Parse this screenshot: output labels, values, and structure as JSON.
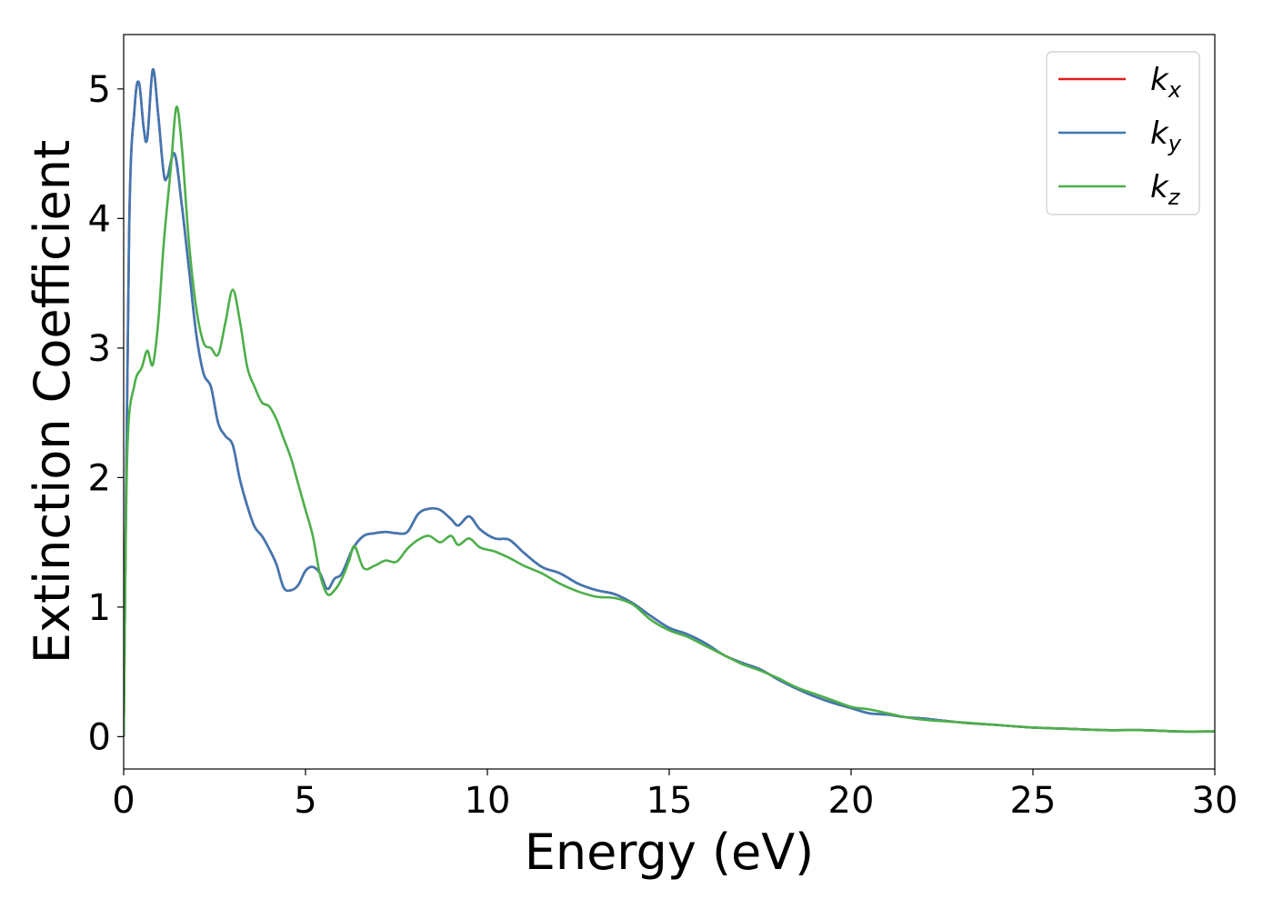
{
  "chart_data": {
    "type": "line",
    "title": "",
    "xlabel": "Energy (eV)",
    "ylabel": "Extinction Coefficient",
    "xlim": [
      0,
      30
    ],
    "ylim": [
      -0.25,
      5.42
    ],
    "xticks": [
      0,
      5,
      10,
      15,
      20,
      25,
      30
    ],
    "yticks": [
      0,
      1,
      2,
      3,
      4,
      5
    ],
    "legend_position": "top-right",
    "grid": false,
    "series": [
      {
        "name": "k",
        "subscript": "x",
        "color": "#e41a1c",
        "x": [
          0,
          0.15,
          0.3,
          0.42,
          0.55,
          0.65,
          0.8,
          0.95,
          1.1,
          1.2,
          1.4,
          1.6,
          1.8,
          2.0,
          2.2,
          2.4,
          2.6,
          2.8,
          3.0,
          3.2,
          3.4,
          3.6,
          3.8,
          4.0,
          4.2,
          4.4,
          4.6,
          4.8,
          5.0,
          5.2,
          5.4,
          5.6,
          5.8,
          6.0,
          6.3,
          6.6,
          6.9,
          7.2,
          7.5,
          7.8,
          8.1,
          8.4,
          8.7,
          9.0,
          9.2,
          9.5,
          9.8,
          10.2,
          10.6,
          11.0,
          11.5,
          12.0,
          12.5,
          13.0,
          13.5,
          14.0,
          14.5,
          15.0,
          15.5,
          16.0,
          16.5,
          17.0,
          17.5,
          18.0,
          18.5,
          19.0,
          19.5,
          20.0,
          20.5,
          21.0,
          21.5,
          22.0,
          23.0,
          24.0,
          25.0,
          26.0,
          27.0,
          28.0,
          29.0,
          30.0
        ],
        "values": [
          0,
          3.9,
          4.85,
          5.05,
          4.7,
          4.62,
          5.15,
          4.8,
          4.35,
          4.32,
          4.5,
          4.1,
          3.6,
          3.1,
          2.8,
          2.7,
          2.42,
          2.32,
          2.25,
          1.98,
          1.78,
          1.62,
          1.55,
          1.45,
          1.33,
          1.15,
          1.13,
          1.17,
          1.28,
          1.31,
          1.26,
          1.14,
          1.22,
          1.26,
          1.45,
          1.55,
          1.57,
          1.58,
          1.57,
          1.58,
          1.72,
          1.76,
          1.75,
          1.68,
          1.63,
          1.7,
          1.6,
          1.53,
          1.52,
          1.42,
          1.31,
          1.26,
          1.18,
          1.13,
          1.1,
          1.03,
          0.93,
          0.84,
          0.79,
          0.72,
          0.63,
          0.57,
          0.52,
          0.44,
          0.37,
          0.31,
          0.26,
          0.22,
          0.18,
          0.17,
          0.15,
          0.14,
          0.11,
          0.09,
          0.07,
          0.06,
          0.05,
          0.05,
          0.04,
          0.04
        ]
      },
      {
        "name": "k",
        "subscript": "y",
        "color": "#3e78b3",
        "x": [
          0,
          0.15,
          0.3,
          0.42,
          0.55,
          0.65,
          0.8,
          0.95,
          1.1,
          1.2,
          1.4,
          1.6,
          1.8,
          2.0,
          2.2,
          2.4,
          2.6,
          2.8,
          3.0,
          3.2,
          3.4,
          3.6,
          3.8,
          4.0,
          4.2,
          4.4,
          4.6,
          4.8,
          5.0,
          5.2,
          5.4,
          5.6,
          5.8,
          6.0,
          6.3,
          6.6,
          6.9,
          7.2,
          7.5,
          7.8,
          8.1,
          8.4,
          8.7,
          9.0,
          9.2,
          9.5,
          9.8,
          10.2,
          10.6,
          11.0,
          11.5,
          12.0,
          12.5,
          13.0,
          13.5,
          14.0,
          14.5,
          15.0,
          15.5,
          16.0,
          16.5,
          17.0,
          17.5,
          18.0,
          18.5,
          19.0,
          19.5,
          20.0,
          20.5,
          21.0,
          21.5,
          22.0,
          23.0,
          24.0,
          25.0,
          26.0,
          27.0,
          28.0,
          29.0,
          30.0
        ],
        "values": [
          0,
          3.9,
          4.85,
          5.05,
          4.7,
          4.62,
          5.15,
          4.8,
          4.35,
          4.32,
          4.5,
          4.1,
          3.6,
          3.1,
          2.8,
          2.7,
          2.42,
          2.32,
          2.25,
          1.98,
          1.78,
          1.62,
          1.55,
          1.45,
          1.33,
          1.15,
          1.13,
          1.17,
          1.28,
          1.31,
          1.26,
          1.14,
          1.22,
          1.26,
          1.45,
          1.55,
          1.57,
          1.58,
          1.57,
          1.58,
          1.72,
          1.76,
          1.75,
          1.68,
          1.63,
          1.7,
          1.6,
          1.53,
          1.52,
          1.42,
          1.31,
          1.26,
          1.18,
          1.13,
          1.1,
          1.03,
          0.93,
          0.84,
          0.79,
          0.72,
          0.63,
          0.57,
          0.52,
          0.44,
          0.37,
          0.31,
          0.26,
          0.22,
          0.18,
          0.17,
          0.15,
          0.14,
          0.11,
          0.09,
          0.07,
          0.06,
          0.05,
          0.05,
          0.04,
          0.04
        ]
      },
      {
        "name": "k",
        "subscript": "z",
        "color": "#4daf4a",
        "x": [
          0,
          0.1,
          0.3,
          0.5,
          0.65,
          0.8,
          0.95,
          1.1,
          1.3,
          1.45,
          1.6,
          1.8,
          2.0,
          2.2,
          2.4,
          2.6,
          2.8,
          3.0,
          3.2,
          3.4,
          3.6,
          3.8,
          4.0,
          4.2,
          4.4,
          4.6,
          4.8,
          5.0,
          5.2,
          5.4,
          5.6,
          5.8,
          6.0,
          6.2,
          6.35,
          6.6,
          6.9,
          7.2,
          7.5,
          7.8,
          8.1,
          8.4,
          8.7,
          9.0,
          9.2,
          9.5,
          9.8,
          10.2,
          10.6,
          11.0,
          11.5,
          12.0,
          12.5,
          13.0,
          13.5,
          14.0,
          14.5,
          15.0,
          15.5,
          16.0,
          16.5,
          17.0,
          17.5,
          18.0,
          18.5,
          19.0,
          19.5,
          20.0,
          20.5,
          21.0,
          21.5,
          22.0,
          23.0,
          24.0,
          25.0,
          26.0,
          27.0,
          28.0,
          29.0,
          30.0
        ],
        "values": [
          0,
          2.2,
          2.72,
          2.85,
          2.98,
          2.87,
          3.2,
          3.8,
          4.4,
          4.86,
          4.55,
          3.8,
          3.3,
          3.04,
          3.0,
          2.95,
          3.2,
          3.45,
          3.2,
          2.85,
          2.7,
          2.58,
          2.55,
          2.45,
          2.3,
          2.15,
          1.95,
          1.75,
          1.55,
          1.25,
          1.1,
          1.13,
          1.22,
          1.36,
          1.47,
          1.3,
          1.32,
          1.36,
          1.35,
          1.45,
          1.52,
          1.55,
          1.5,
          1.55,
          1.48,
          1.53,
          1.46,
          1.43,
          1.38,
          1.32,
          1.26,
          1.18,
          1.12,
          1.08,
          1.07,
          1.02,
          0.9,
          0.82,
          0.77,
          0.7,
          0.63,
          0.56,
          0.51,
          0.45,
          0.38,
          0.33,
          0.28,
          0.23,
          0.21,
          0.18,
          0.15,
          0.13,
          0.11,
          0.09,
          0.07,
          0.06,
          0.05,
          0.05,
          0.04,
          0.04
        ]
      }
    ]
  }
}
